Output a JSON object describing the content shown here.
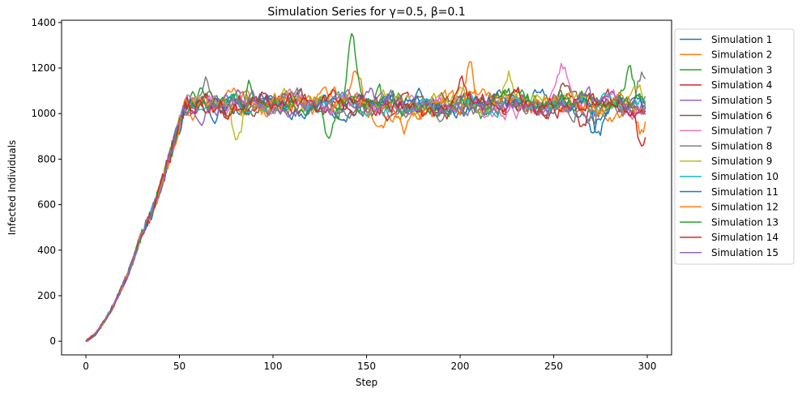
{
  "chart_data": {
    "type": "line",
    "title": "Simulation Series for γ=0.5, β=0.1",
    "xlabel": "Step",
    "ylabel": "Infected Individuals",
    "xlim": [
      -13,
      313
    ],
    "ylim": [
      -60,
      1410
    ],
    "xticks": [
      0,
      50,
      100,
      150,
      200,
      250,
      300
    ],
    "yticks": [
      0,
      200,
      400,
      600,
      800,
      1000,
      1200,
      1400
    ],
    "grid": false,
    "legend_position": "outside-right-top",
    "growth": {
      "x": [
        0,
        5,
        10,
        15,
        20,
        25,
        30,
        35,
        40,
        45,
        50,
        53
      ],
      "y": [
        0,
        30,
        90,
        160,
        250,
        350,
        480,
        560,
        680,
        820,
        950,
        1030
      ]
    },
    "plateau": {
      "start_step": 53,
      "end_step": 299,
      "mean": 1040
    },
    "series": [
      {
        "name": "Simulation 1",
        "color": "#1f77b4",
        "seed": 11,
        "spread": 55,
        "events": [
          [
            270,
            -140
          ]
        ]
      },
      {
        "name": "Simulation 2",
        "color": "#ff7f0e",
        "seed": 23,
        "spread": 60,
        "events": [
          [
            145,
            150
          ],
          [
            205,
            190
          ],
          [
            297,
            -110
          ]
        ]
      },
      {
        "name": "Simulation 3",
        "color": "#2ca02c",
        "seed": 37,
        "spread": 65,
        "events": [
          [
            142,
            300
          ],
          [
            88,
            120
          ],
          [
            290,
            160
          ]
        ]
      },
      {
        "name": "Simulation 4",
        "color": "#d62728",
        "seed": 41,
        "spread": 55,
        "events": [
          [
            52,
            130
          ],
          [
            297,
            -190
          ],
          [
            265,
            -140
          ]
        ]
      },
      {
        "name": "Simulation 5",
        "color": "#9467bd",
        "seed": 53,
        "spread": 55,
        "events": []
      },
      {
        "name": "Simulation 6",
        "color": "#8c564b",
        "seed": 67,
        "spread": 50,
        "events": [
          [
            255,
            100
          ]
        ]
      },
      {
        "name": "Simulation 7",
        "color": "#e377c2",
        "seed": 71,
        "spread": 55,
        "events": [
          [
            255,
            140
          ]
        ]
      },
      {
        "name": "Simulation 8",
        "color": "#7f7f7f",
        "seed": 83,
        "spread": 55,
        "events": [
          [
            64,
            130
          ],
          [
            297,
            120
          ]
        ]
      },
      {
        "name": "Simulation 9",
        "color": "#bcbd22",
        "seed": 97,
        "spread": 55,
        "events": [
          [
            81,
            -200
          ],
          [
            226,
            140
          ]
        ]
      },
      {
        "name": "Simulation 10",
        "color": "#17becf",
        "seed": 101,
        "spread": 50,
        "events": []
      },
      {
        "name": "Simulation 11",
        "color": "#1f77b4",
        "seed": 113,
        "spread": 50,
        "events": [
          [
            274,
            -160
          ]
        ]
      },
      {
        "name": "Simulation 12",
        "color": "#ff7f0e",
        "seed": 127,
        "spread": 55,
        "events": [
          [
            170,
            -130
          ]
        ]
      },
      {
        "name": "Simulation 13",
        "color": "#2ca02c",
        "seed": 131,
        "spread": 50,
        "events": [
          [
            130,
            -170
          ]
        ]
      },
      {
        "name": "Simulation 14",
        "color": "#d62728",
        "seed": 139,
        "spread": 55,
        "events": [
          [
            200,
            130
          ]
        ]
      },
      {
        "name": "Simulation 15",
        "color": "#9467bd",
        "seed": 149,
        "spread": 50,
        "events": []
      }
    ]
  }
}
